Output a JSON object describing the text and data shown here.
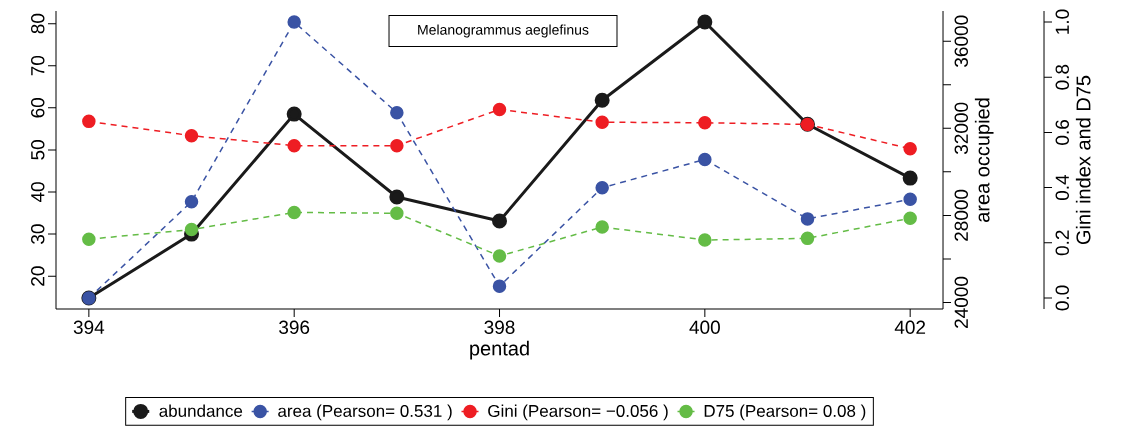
{
  "chart_data": {
    "type": "line",
    "title": "Melanogrammus aeglefinus",
    "xlabel": "pentad",
    "y2label": "area occupied",
    "y3label": "Gini index and D75",
    "x": [
      394,
      395,
      396,
      397,
      398,
      399,
      400,
      401,
      402
    ],
    "xlim": [
      393.68,
      402.32
    ],
    "xticks": [
      394,
      396,
      398,
      400,
      402
    ],
    "ylim": [
      12.2,
      83.0
    ],
    "yticks": [
      20,
      30,
      40,
      50,
      60,
      70,
      80
    ],
    "y2lim": [
      23700,
      37390
    ],
    "y2ticks": [
      24000,
      {
        "value": 26000,
        "label": null
      },
      28000,
      {
        "value": 30000,
        "label": null
      },
      32000,
      {
        "value": 34000,
        "label": null
      },
      36000
    ],
    "y3lim": [
      -0.04,
      1.04
    ],
    "y3ticks": [
      {
        "value": 0,
        "label": "0.0"
      },
      {
        "value": 0.2,
        "label": "0.2"
      },
      {
        "value": 0.4,
        "label": "0.4"
      },
      {
        "value": 0.6,
        "label": "0.6"
      },
      {
        "value": 0.8,
        "label": "0.8"
      },
      {
        "value": 1,
        "label": "1.0"
      }
    ],
    "marker": "circle",
    "legend": "bottom",
    "series": [
      {
        "name": "abundance",
        "color": "#1a1a1a",
        "line_style": "solid",
        "values": [
          14.8,
          30.0,
          58.5,
          38.8,
          33.1,
          61.8,
          80.4,
          56.1,
          43.3
        ]
      },
      {
        "name": "area (Pearson= 0.531 )",
        "color": "#3a53a4",
        "line_style": "dashed",
        "axis": "y2",
        "values": [
          24200,
          28630,
          36880,
          32720,
          24750,
          29270,
          30570,
          27840,
          28740
        ]
      },
      {
        "name": "Gini (Pearson= −0.056 )",
        "color": "#ee1d23",
        "line_style": "dashed",
        "axis": "y3",
        "values": [
          0.64,
          0.588,
          0.552,
          0.552,
          0.683,
          0.637,
          0.635,
          0.629,
          0.541
        ]
      },
      {
        "name": "D75 (Pearson= 0.08 )",
        "color": "#64bc46",
        "line_style": "dashed",
        "axis": "y3",
        "values": [
          0.213,
          0.248,
          0.31,
          0.307,
          0.152,
          0.257,
          0.21,
          0.216,
          0.289
        ]
      }
    ]
  }
}
